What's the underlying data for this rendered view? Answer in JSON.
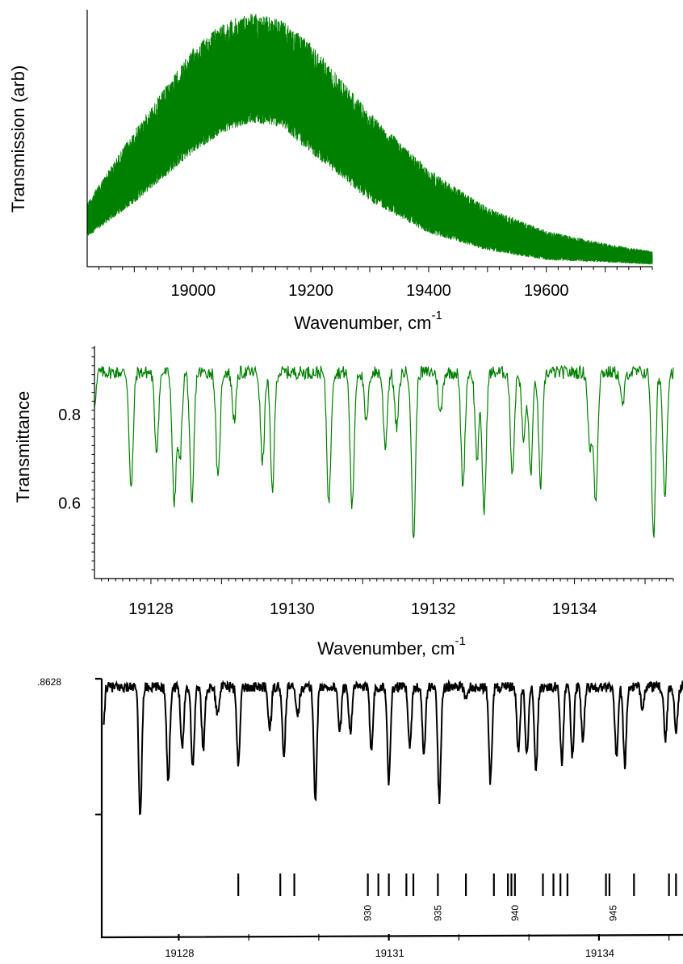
{
  "chart_data": [
    {
      "type": "line",
      "ylabel": "Transmission (arb)",
      "xlabel": "Wavenumber, cm",
      "xlabel_sup": "-1",
      "xlim": [
        18820,
        19780
      ],
      "ylim": [
        0,
        1
      ],
      "x_ticks": [
        19000,
        19200,
        19400,
        19600
      ],
      "x_tick_labels": [
        "19000",
        "19200",
        "19400",
        "19600"
      ],
      "y_tick_labels": [],
      "color": "#008000",
      "envelope": {
        "x": [
          18820,
          18900,
          19000,
          19050,
          19100,
          19150,
          19200,
          19300,
          19400,
          19500,
          19600,
          19700,
          19780
        ],
        "upper": [
          0.25,
          0.53,
          0.85,
          0.95,
          0.99,
          0.96,
          0.87,
          0.6,
          0.38,
          0.23,
          0.14,
          0.09,
          0.06
        ],
        "lower": [
          0.12,
          0.26,
          0.46,
          0.54,
          0.58,
          0.56,
          0.46,
          0.27,
          0.14,
          0.07,
          0.03,
          0.02,
          0.01
        ]
      },
      "grid": false
    },
    {
      "type": "line",
      "ylabel": "Transmittance",
      "xlabel": "Wavenumber, cm",
      "xlabel_sup": "-1",
      "xlim": [
        19127.2,
        19135.4
      ],
      "ylim": [
        0.43,
        0.955
      ],
      "x_ticks": [
        19128,
        19130,
        19132,
        19134
      ],
      "x_tick_labels": [
        "19128",
        "19130",
        "19132",
        "19134"
      ],
      "y_ticks": [
        0.6,
        0.8
      ],
      "y_tick_labels": [
        "0.6",
        "0.8"
      ],
      "baseline": 0.895,
      "color": "#008000",
      "dips": [
        {
          "x": 19127.72,
          "y": 0.63
        },
        {
          "x": 19128.08,
          "y": 0.72
        },
        {
          "x": 19128.33,
          "y": 0.6
        },
        {
          "x": 19128.41,
          "y": 0.7
        },
        {
          "x": 19128.58,
          "y": 0.59
        },
        {
          "x": 19128.95,
          "y": 0.65
        },
        {
          "x": 19129.18,
          "y": 0.79
        },
        {
          "x": 19129.58,
          "y": 0.69
        },
        {
          "x": 19129.72,
          "y": 0.63
        },
        {
          "x": 19130.52,
          "y": 0.6
        },
        {
          "x": 19130.85,
          "y": 0.59
        },
        {
          "x": 19131.05,
          "y": 0.78
        },
        {
          "x": 19131.32,
          "y": 0.73
        },
        {
          "x": 19131.48,
          "y": 0.77
        },
        {
          "x": 19131.72,
          "y": 0.52
        },
        {
          "x": 19132.1,
          "y": 0.8
        },
        {
          "x": 19132.42,
          "y": 0.64
        },
        {
          "x": 19132.62,
          "y": 0.7
        },
        {
          "x": 19132.72,
          "y": 0.58
        },
        {
          "x": 19133.12,
          "y": 0.67
        },
        {
          "x": 19133.28,
          "y": 0.74
        },
        {
          "x": 19133.38,
          "y": 0.67
        },
        {
          "x": 19133.52,
          "y": 0.64
        },
        {
          "x": 19134.22,
          "y": 0.72
        },
        {
          "x": 19134.3,
          "y": 0.61
        },
        {
          "x": 19134.68,
          "y": 0.82
        },
        {
          "x": 19135.12,
          "y": 0.52
        },
        {
          "x": 19135.28,
          "y": 0.62
        }
      ],
      "grid": false
    },
    {
      "type": "line",
      "y_top_label": ".8628",
      "xlim": [
        19126.9,
        19135.2
      ],
      "x_ticks": [
        19128,
        19131,
        19134
      ],
      "x_tick_labels": [
        "19128",
        "19131",
        "19134"
      ],
      "baseline": 0.96,
      "color": "#000000",
      "dips": [
        {
          "x": 19127.45,
          "y": 0.2
        },
        {
          "x": 19127.85,
          "y": 0.4
        },
        {
          "x": 19128.05,
          "y": 0.6
        },
        {
          "x": 19128.2,
          "y": 0.48
        },
        {
          "x": 19128.35,
          "y": 0.6
        },
        {
          "x": 19128.55,
          "y": 0.8
        },
        {
          "x": 19128.85,
          "y": 0.5
        },
        {
          "x": 19129.3,
          "y": 0.7
        },
        {
          "x": 19129.5,
          "y": 0.55
        },
        {
          "x": 19129.7,
          "y": 0.8
        },
        {
          "x": 19129.95,
          "y": 0.3
        },
        {
          "x": 19130.3,
          "y": 0.7
        },
        {
          "x": 19130.45,
          "y": 0.7
        },
        {
          "x": 19130.75,
          "y": 0.6
        },
        {
          "x": 19131.0,
          "y": 0.4
        },
        {
          "x": 19131.3,
          "y": 0.6
        },
        {
          "x": 19131.5,
          "y": 0.55
        },
        {
          "x": 19131.72,
          "y": 0.3
        },
        {
          "x": 19132.1,
          "y": 0.9
        },
        {
          "x": 19132.45,
          "y": 0.4
        },
        {
          "x": 19132.85,
          "y": 0.58
        },
        {
          "x": 19132.97,
          "y": 0.55
        },
        {
          "x": 19133.1,
          "y": 0.45
        },
        {
          "x": 19133.47,
          "y": 0.52
        },
        {
          "x": 19133.62,
          "y": 0.55
        },
        {
          "x": 19133.77,
          "y": 0.65
        },
        {
          "x": 19134.25,
          "y": 0.55
        },
        {
          "x": 19134.37,
          "y": 0.5
        },
        {
          "x": 19134.62,
          "y": 0.85
        },
        {
          "x": 19134.95,
          "y": 0.65
        },
        {
          "x": 19135.1,
          "y": 0.7
        }
      ],
      "stick_positions": [
        19128.85,
        19129.45,
        19129.65,
        19130.7,
        19130.85,
        19131.0,
        19131.25,
        19131.35,
        19131.7,
        19132.1,
        19132.5,
        19132.7,
        19132.75,
        19132.8,
        19133.2,
        19133.35,
        19133.45,
        19133.55,
        19134.1,
        19134.15,
        19134.5,
        19135.0,
        19135.1
      ],
      "stick_labels": [
        {
          "x": 19130.7,
          "label": "930"
        },
        {
          "x": 19131.7,
          "label": "935"
        },
        {
          "x": 19132.8,
          "label": "940"
        },
        {
          "x": 19134.2,
          "label": "945"
        }
      ],
      "grid": false
    }
  ]
}
